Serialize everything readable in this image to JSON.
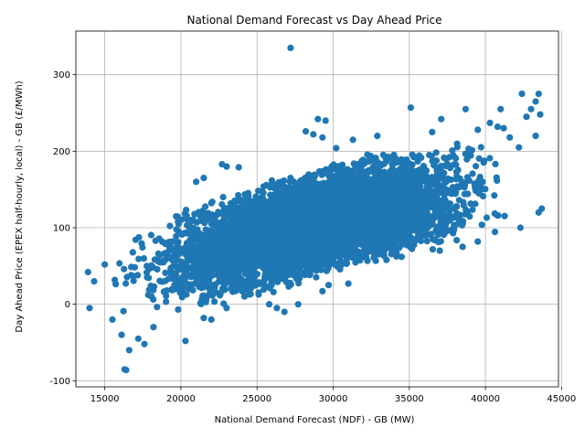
{
  "chart_data": {
    "type": "scatter",
    "title": "National Demand Forecast vs Day Ahead Price",
    "xlabel": "National Demand Forecast (NDF) - GB (MW)",
    "ylabel": "Day Ahead Price (EPEX half-hourly, local) - GB (£/MWh)",
    "xlim": [
      13100,
      44800
    ],
    "ylim": [
      -108,
      357
    ],
    "xticks": [
      15000,
      20000,
      25000,
      30000,
      35000,
      40000,
      45000
    ],
    "yticks": [
      -100,
      0,
      100,
      200,
      300
    ],
    "grid": true,
    "marker_color": "#1f77b4",
    "cloud": {
      "x_range": [
        13900,
        43700
      ],
      "lower_edge": [
        [
          13900,
          -8
        ],
        [
          16000,
          -25
        ],
        [
          18000,
          -15
        ],
        [
          20000,
          -10
        ],
        [
          22000,
          -5
        ],
        [
          24000,
          5
        ],
        [
          26000,
          15
        ],
        [
          28000,
          25
        ],
        [
          30000,
          40
        ],
        [
          32000,
          50
        ],
        [
          34000,
          60
        ],
        [
          36000,
          70
        ],
        [
          38000,
          75
        ],
        [
          40000,
          85
        ],
        [
          42000,
          95
        ],
        [
          43700,
          110
        ]
      ],
      "upper_edge": [
        [
          13900,
          45
        ],
        [
          16000,
          95
        ],
        [
          18000,
          105
        ],
        [
          20000,
          130
        ],
        [
          22000,
          145
        ],
        [
          24000,
          150
        ],
        [
          26000,
          165
        ],
        [
          28000,
          175
        ],
        [
          30000,
          185
        ],
        [
          32000,
          195
        ],
        [
          34000,
          200
        ],
        [
          36000,
          205
        ],
        [
          38000,
          215
        ],
        [
          40000,
          225
        ],
        [
          42000,
          230
        ],
        [
          43700,
          240
        ]
      ],
      "count": 5200
    },
    "points": [
      {
        "x": 27200,
        "y": 335
      },
      {
        "x": 16400,
        "y": -86
      },
      {
        "x": 16300,
        "y": -85
      },
      {
        "x": 20300,
        "y": -48
      },
      {
        "x": 16600,
        "y": -60
      },
      {
        "x": 17600,
        "y": -52
      },
      {
        "x": 16100,
        "y": -40
      },
      {
        "x": 14000,
        "y": -5
      },
      {
        "x": 13900,
        "y": 42
      },
      {
        "x": 14300,
        "y": 30
      },
      {
        "x": 15000,
        "y": 52
      },
      {
        "x": 42400,
        "y": 275
      },
      {
        "x": 43500,
        "y": 275
      },
      {
        "x": 43300,
        "y": 265
      },
      {
        "x": 43000,
        "y": 255
      },
      {
        "x": 42700,
        "y": 245
      },
      {
        "x": 43600,
        "y": 248
      },
      {
        "x": 41000,
        "y": 255
      },
      {
        "x": 38700,
        "y": 255
      },
      {
        "x": 35100,
        "y": 257
      },
      {
        "x": 29000,
        "y": 242
      },
      {
        "x": 29500,
        "y": 240
      },
      {
        "x": 37100,
        "y": 242
      },
      {
        "x": 28200,
        "y": 226
      },
      {
        "x": 28700,
        "y": 222
      },
      {
        "x": 29300,
        "y": 218
      },
      {
        "x": 31300,
        "y": 215
      },
      {
        "x": 32900,
        "y": 220
      },
      {
        "x": 22700,
        "y": 183
      },
      {
        "x": 23000,
        "y": 180
      },
      {
        "x": 23800,
        "y": 179
      },
      {
        "x": 21000,
        "y": 160
      },
      {
        "x": 21500,
        "y": 165
      },
      {
        "x": 41200,
        "y": 230
      },
      {
        "x": 40300,
        "y": 237
      },
      {
        "x": 42200,
        "y": 205
      },
      {
        "x": 43300,
        "y": 220
      },
      {
        "x": 43700,
        "y": 125
      },
      {
        "x": 42300,
        "y": 100
      },
      {
        "x": 43500,
        "y": 120
      },
      {
        "x": 31000,
        "y": 27
      },
      {
        "x": 29300,
        "y": 17
      },
      {
        "x": 29700,
        "y": 25
      },
      {
        "x": 26300,
        "y": -5
      },
      {
        "x": 26800,
        "y": -10
      },
      {
        "x": 27700,
        "y": 0
      },
      {
        "x": 21500,
        "y": -18
      },
      {
        "x": 22000,
        "y": -20
      },
      {
        "x": 23000,
        "y": -5
      },
      {
        "x": 25800,
        "y": 0
      },
      {
        "x": 15500,
        "y": -20
      },
      {
        "x": 18200,
        "y": -30
      },
      {
        "x": 17200,
        "y": -45
      },
      {
        "x": 37000,
        "y": 70
      },
      {
        "x": 38500,
        "y": 75
      },
      {
        "x": 39500,
        "y": 82
      },
      {
        "x": 34500,
        "y": 62
      },
      {
        "x": 33500,
        "y": 58
      },
      {
        "x": 30200,
        "y": 204
      },
      {
        "x": 29900,
        "y": 180
      },
      {
        "x": 36500,
        "y": 225
      },
      {
        "x": 39500,
        "y": 228
      },
      {
        "x": 40800,
        "y": 232
      },
      {
        "x": 41600,
        "y": 218
      }
    ]
  }
}
